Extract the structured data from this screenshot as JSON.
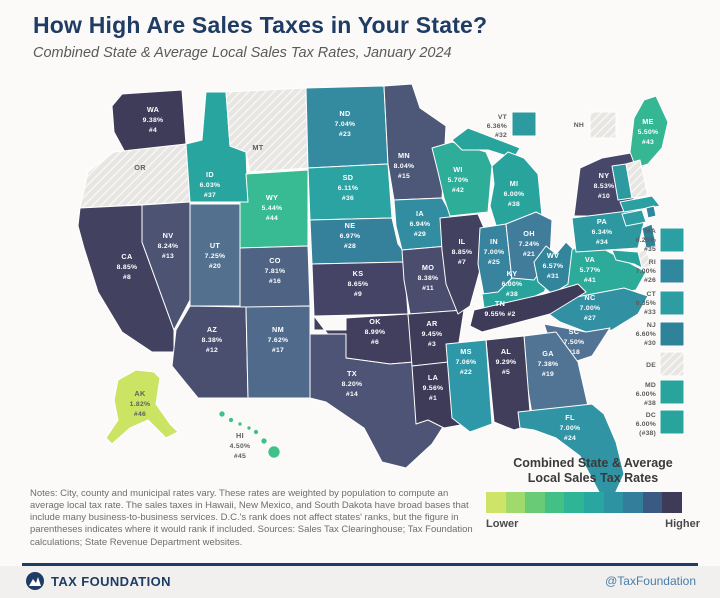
{
  "header": {
    "title": "How High Are Sales Taxes in Your State?",
    "subtitle": "Combined State & Average Local Sales Tax Rates, January 2024"
  },
  "map": {
    "states": [
      {
        "id": "WA",
        "value": "9.38%",
        "rank": "#4",
        "color": "#3e3c59"
      },
      {
        "id": "OR",
        "value": "",
        "rank": "",
        "color": "hatch"
      },
      {
        "id": "CA",
        "value": "8.85%",
        "rank": "#8",
        "color": "#434160"
      },
      {
        "id": "NV",
        "value": "8.24%",
        "rank": "#13",
        "color": "#4c5373"
      },
      {
        "id": "ID",
        "value": "6.03%",
        "rank": "#37",
        "color": "#28a59f"
      },
      {
        "id": "MT",
        "value": "",
        "rank": "",
        "color": "hatch"
      },
      {
        "id": "WY",
        "value": "5.44%",
        "rank": "#44",
        "color": "#38bb92"
      },
      {
        "id": "UT",
        "value": "7.25%",
        "rank": "#20",
        "color": "#53708f"
      },
      {
        "id": "CO",
        "value": "7.81%",
        "rank": "#16",
        "color": "#4f6485"
      },
      {
        "id": "AZ",
        "value": "8.38%",
        "rank": "#12",
        "color": "#4a4f70"
      },
      {
        "id": "NM",
        "value": "7.62%",
        "rank": "#17",
        "color": "#506a8b"
      },
      {
        "id": "ND",
        "value": "7.04%",
        "rank": "#23",
        "color": "#348a9e"
      },
      {
        "id": "SD",
        "value": "6.11%",
        "rank": "#36",
        "color": "#2aa3a2"
      },
      {
        "id": "NE",
        "value": "6.97%",
        "rank": "#28",
        "color": "#35809a"
      },
      {
        "id": "KS",
        "value": "8.65%",
        "rank": "#9",
        "color": "#454466"
      },
      {
        "id": "OK",
        "value": "8.99%",
        "rank": "#6",
        "color": "#413f5d"
      },
      {
        "id": "TX",
        "value": "8.20%",
        "rank": "#14",
        "color": "#4d5475"
      },
      {
        "id": "MN",
        "value": "8.04%",
        "rank": "#15",
        "color": "#4d5878"
      },
      {
        "id": "IA",
        "value": "6.94%",
        "rank": "#29",
        "color": "#338da0"
      },
      {
        "id": "MO",
        "value": "8.38%",
        "rank": "#11",
        "color": "#4a4d6e"
      },
      {
        "id": "AR",
        "value": "9.45%",
        "rank": "#3",
        "color": "#3e3c59"
      },
      {
        "id": "LA",
        "value": "9.56%",
        "rank": "#1",
        "color": "#3d3b58"
      },
      {
        "id": "WI",
        "value": "5.70%",
        "rank": "#42",
        "color": "#2ead99"
      },
      {
        "id": "MI",
        "value": "6.00%",
        "rank": "#38",
        "color": "#28a49d"
      },
      {
        "id": "IL",
        "value": "8.85%",
        "rank": "#7",
        "color": "#434160"
      },
      {
        "id": "IN",
        "value": "7.00%",
        "rank": "#25",
        "color": "#38839d"
      },
      {
        "id": "OH",
        "value": "7.24%",
        "rank": "#21",
        "color": "#417d9b"
      },
      {
        "id": "KY",
        "value": "6.00%",
        "rank": "#38",
        "color": "#28a49d"
      },
      {
        "id": "WV",
        "value": "6.57%",
        "rank": "#31",
        "color": "#33859b"
      },
      {
        "id": "VA",
        "value": "5.77%",
        "rank": "#41",
        "color": "#2cab9b"
      },
      {
        "id": "NC",
        "value": "7.00%",
        "rank": "#27",
        "color": "#3190a2"
      },
      {
        "id": "SC",
        "value": "7.50%",
        "rank": "#18",
        "color": "#527394"
      },
      {
        "id": "TN",
        "value": "9.55%",
        "rank": "#2",
        "color": "#3d3b58"
      },
      {
        "id": "GA",
        "value": "7.38%",
        "rank": "#19",
        "color": "#527494"
      },
      {
        "id": "AL",
        "value": "9.29%",
        "rank": "#5",
        "color": "#403e5b"
      },
      {
        "id": "MS",
        "value": "7.06%",
        "rank": "#22",
        "color": "#2f98a8"
      },
      {
        "id": "FL",
        "value": "7.00%",
        "rank": "#24",
        "color": "#3094a5"
      },
      {
        "id": "NY",
        "value": "8.53%",
        "rank": "#10",
        "color": "#474769"
      },
      {
        "id": "PA",
        "value": "6.34%",
        "rank": "#34",
        "color": "#2e98a1"
      },
      {
        "id": "ME",
        "value": "5.50%",
        "rank": "#43",
        "color": "#36b793"
      },
      {
        "id": "VT",
        "value": "",
        "rank": "",
        "color": "#2d9aa0"
      },
      {
        "id": "NH",
        "value": "",
        "rank": "",
        "color": "hatch"
      },
      {
        "id": "MA",
        "value": "",
        "rank": "",
        "color": "#2ba0a2"
      },
      {
        "id": "CT",
        "value": "",
        "rank": "",
        "color": "#2d9da1"
      },
      {
        "id": "RI",
        "value": "",
        "rank": "",
        "color": "#31879e"
      },
      {
        "id": "NJ",
        "value": "",
        "rank": "",
        "color": "#2e8399"
      },
      {
        "id": "DE",
        "value": "",
        "rank": "",
        "color": "hatch"
      },
      {
        "id": "MD",
        "value": "",
        "rank": "",
        "color": "#28a49d"
      },
      {
        "id": "AK",
        "value": "1.82%",
        "rank": "#46",
        "color": "#cbe463"
      },
      {
        "id": "HI",
        "value": "4.50%",
        "rank": "#45",
        "color": "#41c08a"
      }
    ],
    "callouts": [
      {
        "id": "VT",
        "value": "6.36%",
        "rank": "#32",
        "color": "#2d9aa0"
      },
      {
        "id": "NH",
        "value": "",
        "rank": "",
        "color": "hatch"
      },
      {
        "id": "MA",
        "value": "6.25%",
        "rank": "#35",
        "color": "#2ba0a2"
      },
      {
        "id": "RI",
        "value": "7.00%",
        "rank": "#26",
        "color": "#31879e"
      },
      {
        "id": "CT",
        "value": "6.35%",
        "rank": "#33",
        "color": "#2d9da1"
      },
      {
        "id": "NJ",
        "value": "6.60%",
        "rank": "#30",
        "color": "#2e8399"
      },
      {
        "id": "DE",
        "value": "",
        "rank": "",
        "color": "hatch"
      },
      {
        "id": "MD",
        "value": "6.00%",
        "rank": "#38",
        "color": "#28a49d"
      },
      {
        "id": "DC",
        "value": "6.00%",
        "rank": "(#38)",
        "color": "#28a49d"
      }
    ]
  },
  "legend": {
    "title_line1": "Combined State & Average",
    "title_line2": "Local Sales Tax Rates",
    "lower": "Lower",
    "higher": "Higher",
    "colors": [
      "#cde468",
      "#a0da6d",
      "#6acb77",
      "#42c085",
      "#2eb595",
      "#2aa6a0",
      "#2d93a2",
      "#337e9a",
      "#3a5a83",
      "#3d3b58"
    ]
  },
  "notes": "Notes: City, county and municipal rates vary. These rates are weighted by population to compute an average local tax rate. The sales taxes in Hawaii, New Mexico, and South Dakota have broad bases that include many business-to-business services. D.C.'s rank does not affect states' ranks, but the figure in parentheses indicates where it would rank if included. Sources: Sales Tax Clearinghouse; Tax Foundation calculations; State Revenue Department websites.",
  "footer": {
    "brand": "TAX FOUNDATION",
    "handle": "@TaxFoundation"
  }
}
